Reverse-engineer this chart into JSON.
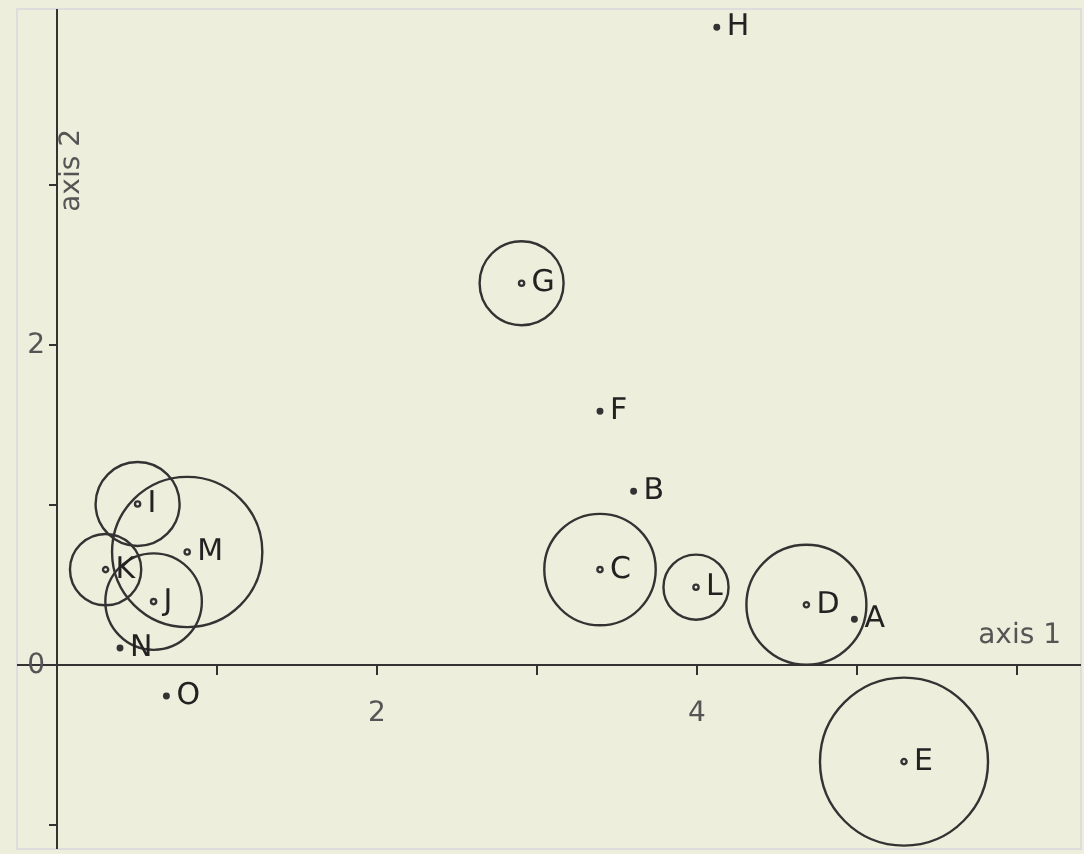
{
  "chart_data": {
    "type": "scatter",
    "xlabel": "axis 1",
    "ylabel": "axis 2",
    "xlim": [
      -0.25,
      6.4
    ],
    "ylim": [
      -1.15,
      4.1
    ],
    "xticks": [
      {
        "value": 0,
        "label": null
      },
      {
        "value": 1,
        "label": null
      },
      2,
      {
        "value": 3,
        "label": null
      },
      4,
      {
        "value": 5,
        "label": null
      },
      {
        "value": 6,
        "label": null
      }
    ],
    "yticks": [
      {
        "value": -1,
        "label": null
      },
      0,
      {
        "value": 1,
        "label": null
      },
      2,
      {
        "value": 3,
        "label": null
      }
    ],
    "grid": false,
    "marker": "circle",
    "series": [
      {
        "type": "scatter",
        "color": "#333333",
        "x": [
          4.99,
          3.61,
          3.4,
          4.13,
          0.4,
          0.69
        ],
        "values": [
          0.28,
          1.08,
          1.58,
          3.98,
          0.1,
          -0.2
        ]
      },
      {
        "type": "bubble",
        "color": "#333333",
        "x": [
          2.91,
          3.4,
          4.0,
          4.69,
          5.3,
          0.51,
          0.82,
          0.31,
          0.61
        ],
        "values": [
          2.38,
          0.59,
          0.48,
          0.37,
          -0.61,
          1.0,
          0.7,
          0.59,
          0.39
        ],
        "sizes": [
          0.25,
          0.44,
          0.15,
          0.51,
          1,
          0.25,
          0.8,
          0.18,
          0.33
        ]
      }
    ],
    "annotations": [
      {
        "text": "A",
        "x": 4.99,
        "y": 0.28
      },
      {
        "text": "B",
        "x": 3.61,
        "y": 1.08
      },
      {
        "text": "C",
        "x": 3.4,
        "y": 0.59
      },
      {
        "text": "D",
        "x": 4.69,
        "y": 0.37
      },
      {
        "text": "E",
        "x": 5.3,
        "y": -0.61
      },
      {
        "text": "F",
        "x": 3.4,
        "y": 1.58
      },
      {
        "text": "G",
        "x": 2.91,
        "y": 2.38
      },
      {
        "text": "H",
        "x": 4.13,
        "y": 3.98
      },
      {
        "text": "I",
        "x": 0.51,
        "y": 1.0
      },
      {
        "text": "J",
        "x": 0.61,
        "y": 0.39
      },
      {
        "text": "K",
        "x": 0.31,
        "y": 0.59
      },
      {
        "text": "L",
        "x": 4.0,
        "y": 0.48
      },
      {
        "text": "M",
        "x": 0.82,
        "y": 0.7
      },
      {
        "text": "N",
        "x": 0.4,
        "y": 0.1
      },
      {
        "text": "O",
        "x": 0.69,
        "y": -0.2
      }
    ]
  }
}
